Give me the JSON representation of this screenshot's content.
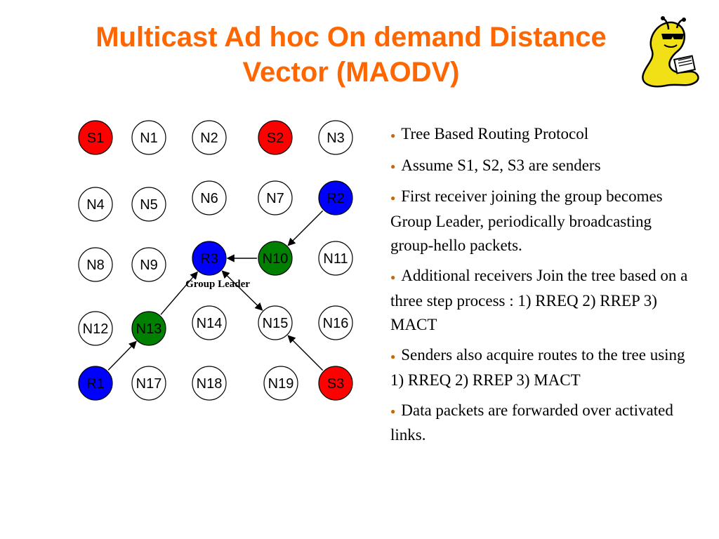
{
  "title": {
    "line1": "Multicast Ad hoc On demand Distance",
    "line2": "Vector (MAODV)"
  },
  "colors": {
    "title": "#ff6600",
    "sender": "#ff0000",
    "receiver": "#0000ff",
    "tree_member": "#008000",
    "node_default": "#ffffff"
  },
  "diagram": {
    "group_leader_label": "Group Leader",
    "nodes": [
      {
        "id": "S1",
        "role": "sender"
      },
      {
        "id": "N1",
        "role": "node"
      },
      {
        "id": "N2",
        "role": "node"
      },
      {
        "id": "S2",
        "role": "sender"
      },
      {
        "id": "N3",
        "role": "node"
      },
      {
        "id": "N4",
        "role": "node"
      },
      {
        "id": "N5",
        "role": "node"
      },
      {
        "id": "N6",
        "role": "node"
      },
      {
        "id": "N7",
        "role": "node"
      },
      {
        "id": "R2",
        "role": "receiver"
      },
      {
        "id": "N8",
        "role": "node"
      },
      {
        "id": "N9",
        "role": "node"
      },
      {
        "id": "R3",
        "role": "receiver"
      },
      {
        "id": "N10",
        "role": "tree_member"
      },
      {
        "id": "N11",
        "role": "node"
      },
      {
        "id": "N12",
        "role": "node"
      },
      {
        "id": "N13",
        "role": "tree_member"
      },
      {
        "id": "N14",
        "role": "node"
      },
      {
        "id": "N15",
        "role": "node"
      },
      {
        "id": "N16",
        "role": "node"
      },
      {
        "id": "R1",
        "role": "receiver"
      },
      {
        "id": "N17",
        "role": "node"
      },
      {
        "id": "N18",
        "role": "node"
      },
      {
        "id": "N19",
        "role": "node"
      },
      {
        "id": "S3",
        "role": "sender"
      }
    ],
    "edges": [
      {
        "from": "R2",
        "to": "N10",
        "kind": "arrow"
      },
      {
        "from": "N10",
        "to": "R3",
        "kind": "arrow"
      },
      {
        "from": "N13",
        "to": "R3",
        "kind": "arrow"
      },
      {
        "from": "R1",
        "to": "N13",
        "kind": "arrow"
      },
      {
        "from": "N15",
        "to": "R3",
        "kind": "double-arrow"
      },
      {
        "from": "S3",
        "to": "N15",
        "kind": "arrow"
      }
    ]
  },
  "bullets": [
    "Tree Based Routing Protocol",
    "Assume S1, S2, S3 are senders",
    "First receiver joining the group becomes Group Leader, periodically broadcasting group-hello packets.",
    "Additional receivers Join the tree based on a three step process : 1) RREQ 2) RREP 3) MACT",
    "Senders also acquire routes to the tree using 1) RREQ 2) RREP 3) MACT",
    "Data packets are forwarded over activated links."
  ]
}
